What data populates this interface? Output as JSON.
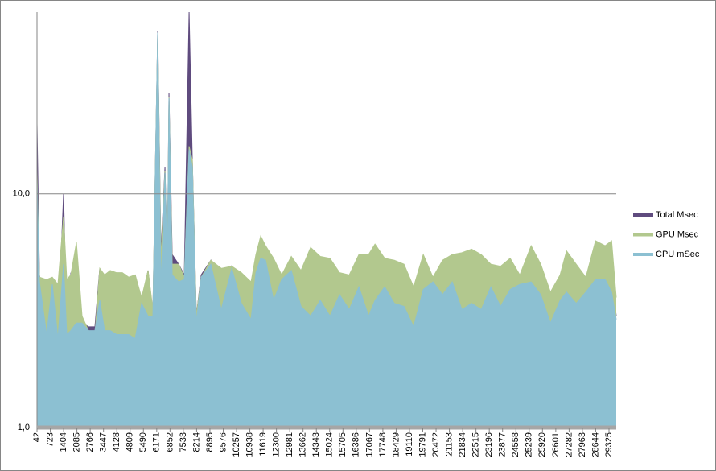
{
  "chart_data": {
    "type": "area",
    "log_y": true,
    "grid": true,
    "legend": "right",
    "xlim": [
      42,
      29696
    ],
    "ylim": [
      1,
      60
    ],
    "yticks": [
      {
        "value": 1,
        "label": "1,0"
      },
      {
        "value": 10,
        "label": "10,0"
      }
    ],
    "xticks": [
      42,
      723,
      1404,
      2085,
      2766,
      3447,
      4128,
      4809,
      5490,
      6171,
      6852,
      7533,
      8214,
      8895,
      9576,
      10257,
      10938,
      11619,
      12300,
      12981,
      13662,
      14343,
      15024,
      15705,
      16386,
      17067,
      17748,
      18429,
      19110,
      19791,
      20472,
      21153,
      21834,
      22515,
      23196,
      23877,
      24558,
      25239,
      25920,
      26601,
      27282,
      27963,
      28644,
      29325
    ],
    "x": [
      42,
      166,
      536,
      825,
      1113,
      1402,
      1566,
      1772,
      2061,
      2349,
      2679,
      3008,
      3256,
      3503,
      3791,
      4121,
      4409,
      4739,
      5068,
      5398,
      5728,
      5975,
      6222,
      6387,
      6593,
      6716,
      6798,
      6963,
      7293,
      7581,
      7829,
      7993,
      8199,
      8447,
      8941,
      9477,
      10012,
      10507,
      11001,
      11248,
      11495,
      11743,
      12155,
      12567,
      13061,
      13556,
      14050,
      14544,
      15039,
      15533,
      16027,
      16522,
      17016,
      17346,
      17840,
      18334,
      18829,
      19323,
      19817,
      20312,
      20806,
      21301,
      21795,
      22290,
      22784,
      23278,
      23773,
      24267,
      24762,
      25339,
      25833,
      26328,
      26822,
      27152,
      27646,
      28140,
      28635,
      29129,
      29459,
      29696
    ],
    "series": [
      {
        "name": "Total Msec",
        "color": "#5f4b7e",
        "values": [
          20,
          4.5,
          2.6,
          4.2,
          2.5,
          10,
          2.6,
          4.6,
          3.0,
          2.8,
          2.7,
          2.7,
          4.8,
          2.7,
          2.7,
          2.6,
          4.6,
          2.5,
          4.5,
          3.5,
          4.7,
          3.1,
          50,
          5.5,
          13,
          5,
          27,
          5.5,
          5,
          4.5,
          60,
          14,
          3.0,
          4.5,
          5.2,
          3.2,
          4.9,
          3.5,
          3.0,
          4.7,
          5.5,
          5.2,
          3.5,
          4.4,
          4.8,
          3.5,
          4.3,
          3.5,
          3.1,
          3.8,
          3.3,
          4.2,
          3.0,
          3.6,
          4.2,
          3.6,
          3.4,
          2.8,
          4.0,
          4.3,
          3.8,
          4.3,
          3.3,
          3.5,
          3.3,
          4.1,
          3.4,
          4.0,
          4.2,
          4.3,
          3.8,
          2.9,
          3.6,
          3.9,
          3.5,
          4.0,
          4.4,
          4.5,
          4.4,
          3.0
        ]
      },
      {
        "name": "GPU Msec",
        "color": "#b2c88e",
        "values": [
          12.5,
          4.4,
          4.3,
          4.4,
          4.1,
          8,
          4.3,
          4.5,
          6.2,
          3.0,
          2.6,
          2.5,
          4.8,
          4.5,
          4.7,
          4.6,
          4.6,
          4.4,
          4.5,
          3.6,
          4.7,
          3.2,
          49,
          5.2,
          12.5,
          5,
          26,
          5,
          5,
          4.4,
          16,
          14,
          3.0,
          4.4,
          5.2,
          4.8,
          4.9,
          4.6,
          4.2,
          5.5,
          6.6,
          6.0,
          5.3,
          4.5,
          5.4,
          4.7,
          5.9,
          5.4,
          5.3,
          4.6,
          4.5,
          5.5,
          5.5,
          6.1,
          5.3,
          5.2,
          5.0,
          4.0,
          5.5,
          4.4,
          5.2,
          5.5,
          5.6,
          5.8,
          5.5,
          5.0,
          4.9,
          5.3,
          4.5,
          6.0,
          5.0,
          3.8,
          4.5,
          5.7,
          5.0,
          4.4,
          6.3,
          6.0,
          6.3,
          3.6
        ]
      },
      {
        "name": "CPU mSec",
        "color": "#8cc0d2",
        "values": [
          11.5,
          4.2,
          2.5,
          4.1,
          2.4,
          5,
          2.5,
          2.6,
          2.8,
          2.8,
          2.6,
          2.6,
          3.5,
          2.6,
          2.6,
          2.5,
          2.5,
          2.5,
          2.4,
          3.4,
          3.0,
          3.0,
          49,
          4,
          12.3,
          4.5,
          25.7,
          4.5,
          4.2,
          4.3,
          15.5,
          13,
          2.8,
          4.4,
          5.0,
          3.2,
          4.8,
          3.4,
          2.9,
          4.6,
          5.3,
          5.2,
          3.5,
          4.3,
          4.7,
          3.3,
          3.0,
          3.5,
          3.0,
          3.7,
          3.2,
          4.0,
          3.0,
          3.5,
          4.0,
          3.4,
          3.3,
          2.7,
          3.9,
          4.2,
          3.7,
          4.2,
          3.2,
          3.4,
          3.2,
          4.0,
          3.3,
          3.9,
          4.1,
          4.2,
          3.7,
          2.8,
          3.5,
          3.8,
          3.4,
          3.8,
          4.3,
          4.3,
          3.8,
          2.9
        ]
      }
    ]
  }
}
